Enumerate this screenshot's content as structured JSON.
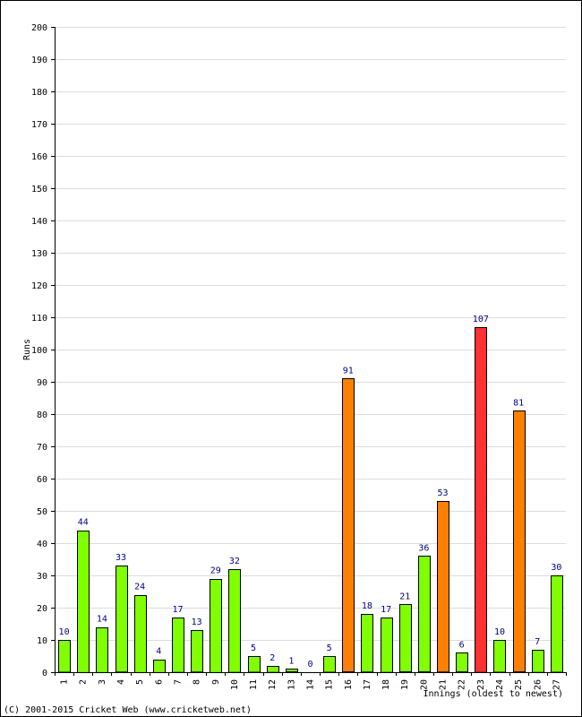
{
  "chart_data": {
    "type": "bar",
    "categories": [
      "1",
      "2",
      "3",
      "4",
      "5",
      "6",
      "7",
      "8",
      "9",
      "10",
      "11",
      "12",
      "13",
      "14",
      "15",
      "16",
      "17",
      "18",
      "19",
      "20",
      "21",
      "22",
      "23",
      "24",
      "25",
      "26",
      "27"
    ],
    "values": [
      10,
      44,
      14,
      33,
      24,
      4,
      17,
      13,
      29,
      32,
      5,
      2,
      1,
      0,
      5,
      91,
      18,
      17,
      21,
      36,
      53,
      6,
      107,
      10,
      81,
      7,
      30
    ],
    "value_labels": [
      "10",
      "44",
      "14",
      "33",
      "24",
      "4",
      "17",
      "13",
      "29",
      "32",
      "5",
      "2",
      "1",
      "0",
      "5",
      "91",
      "18",
      "17",
      "21",
      "36",
      "53",
      "6",
      "107",
      "10",
      "81",
      "7",
      "30"
    ],
    "ylabel": "Runs",
    "xlabel": "Innings (oldest to newest)",
    "ylim": [
      0,
      200
    ],
    "ytick_step": 10,
    "grid": true,
    "colors": {
      "under_50": "#80ff00",
      "fifty": "#ff8000",
      "hundred": "#ff3030",
      "value_label": "#000080",
      "grid": "#dddddd"
    }
  },
  "footer": {
    "copyright": "(C) 2001-2015 Cricket Web (www.cricketweb.net)"
  }
}
